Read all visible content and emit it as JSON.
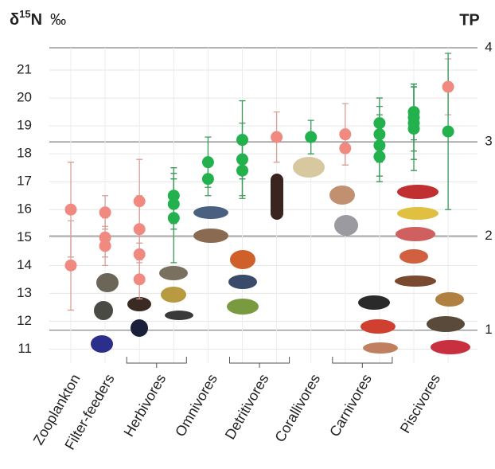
{
  "chart_data": {
    "type": "scatter",
    "ylabel": {
      "symbol": "δ",
      "sup": "15",
      "element": "N",
      "unit": "‰"
    },
    "y2label": "TP",
    "ylim": [
      10.5,
      21.8
    ],
    "yticks": [
      11,
      12,
      13,
      14,
      15,
      16,
      17,
      18,
      19,
      20,
      21
    ],
    "y2lim": [
      0.65,
      4.0
    ],
    "y2ticks": [
      1,
      2,
      3,
      4
    ],
    "grid": true,
    "groups": [
      {
        "label": "Zooplankton",
        "bracket": false,
        "columns": [
          [
            {
              "value": 16.0,
              "error": 1.7,
              "color": "#f08a80"
            },
            {
              "value": 14.0,
              "error": 1.6,
              "color": "#f08a80"
            }
          ]
        ]
      },
      {
        "label": "Filter-feeders",
        "bracket": false,
        "columns": [
          [
            {
              "value": 15.9,
              "error": 0.6,
              "color": "#f08a80"
            },
            {
              "value": 15.0,
              "error": 0.7,
              "color": "#f08a80"
            },
            {
              "value": 14.7,
              "error": 0.7,
              "color": "#f08a80"
            }
          ]
        ]
      },
      {
        "label": "Herbivores",
        "bracket": true,
        "columns": [
          [
            {
              "value": 16.3,
              "error": 1.5,
              "color": "#f08a80"
            },
            {
              "value": 15.3,
              "error": 1.2,
              "color": "#f08a80"
            },
            {
              "value": 14.4,
              "error": 0.9,
              "color": "#f08a80"
            },
            {
              "value": 13.5,
              "error": 0.7,
              "color": "#f08a80"
            }
          ],
          [
            {
              "value": 16.5,
              "error": 1.0,
              "color": "#22b14c"
            },
            {
              "value": 16.2,
              "error": 0.9,
              "color": "#22b14c"
            },
            {
              "value": 15.7,
              "error": 1.6,
              "color": "#22b14c"
            }
          ]
        ]
      },
      {
        "label": "Omnivores",
        "bracket": false,
        "columns": [
          [
            {
              "value": 17.7,
              "error": 0.9,
              "color": "#22b14c"
            },
            {
              "value": 17.1,
              "error": 0.6,
              "color": "#22b14c"
            }
          ]
        ]
      },
      {
        "label": "Detritivores",
        "bracket": true,
        "columns": [
          [
            {
              "value": 18.5,
              "error": 1.4,
              "color": "#22b14c"
            },
            {
              "value": 17.8,
              "error": 1.3,
              "color": "#22b14c"
            },
            {
              "value": 17.4,
              "error": 1.0,
              "color": "#22b14c"
            }
          ],
          [
            {
              "value": 18.6,
              "error": 0.9,
              "color": "#f08a80"
            }
          ]
        ]
      },
      {
        "label": "Corallivores",
        "bracket": false,
        "columns": [
          [
            {
              "value": 18.6,
              "error": 0.6,
              "color": "#22b14c"
            }
          ]
        ]
      },
      {
        "label": "Carnivores",
        "bracket": true,
        "columns": [
          [
            {
              "value": 18.7,
              "error": 1.1,
              "color": "#f08a80"
            },
            {
              "value": 18.2,
              "error": 0.6,
              "color": "#f08a80"
            }
          ],
          [
            {
              "value": 19.1,
              "error": 0.9,
              "color": "#22b14c"
            },
            {
              "value": 18.7,
              "error": 1.0,
              "color": "#22b14c"
            },
            {
              "value": 18.3,
              "error": 1.1,
              "color": "#22b14c"
            },
            {
              "value": 17.9,
              "error": 0.9,
              "color": "#22b14c"
            }
          ]
        ]
      },
      {
        "label": "Piscivores",
        "bracket": false,
        "columns": [
          [
            {
              "value": 19.5,
              "error": 1.0,
              "color": "#22b14c"
            },
            {
              "value": 19.3,
              "error": 1.2,
              "color": "#22b14c"
            },
            {
              "value": 19.1,
              "error": 1.3,
              "color": "#22b14c"
            },
            {
              "value": 18.9,
              "error": 1.5,
              "color": "#22b14c"
            }
          ],
          [
            {
              "value": 20.4,
              "error": 1.0,
              "color": "#f08a80"
            },
            {
              "value": 18.8,
              "error": 2.8,
              "color": "#22b14c"
            }
          ]
        ]
      }
    ]
  }
}
